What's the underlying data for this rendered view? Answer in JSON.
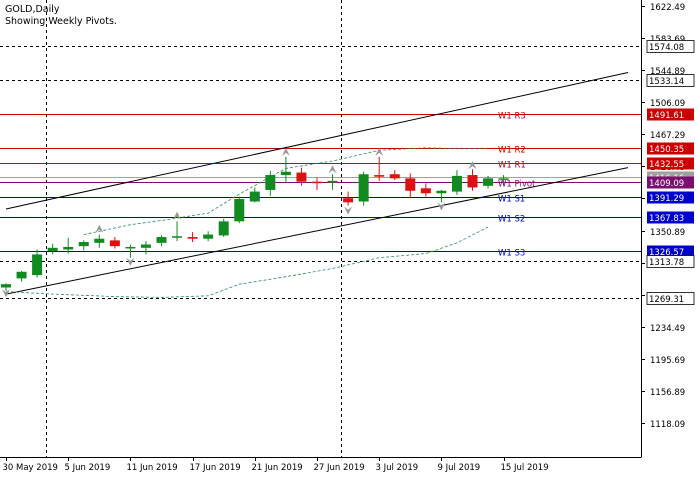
{
  "header": {
    "symbol_line": "GOLD,Daily",
    "indicator_line": "Showing Weekly Pivots."
  },
  "colors": {
    "bull": "#118a20",
    "bear": "#dd1111",
    "axis": "#000000",
    "resistance": "#cc0000",
    "support": "#0000cc",
    "pivot": "#7b0f6f",
    "current": "#a0a0a0",
    "channel": "#000000",
    "envelope": "#2e8b57",
    "fractal": "#999999"
  },
  "chart_data": {
    "type": "candlestick",
    "symbol": "GOLD",
    "timeframe": "Daily",
    "ylim": [
      1100,
      1622.49
    ],
    "y_ticks": [
      "1622.49",
      "1583.69",
      "1544.89",
      "1506.09",
      "1467.29",
      "1428.49",
      "1389.69",
      "1350.89",
      "1312.09",
      "1273.29",
      "1234.49",
      "1195.69",
      "1156.89",
      "1118.09"
    ],
    "x_tick_labels": [
      {
        "bar": 0,
        "label": "30 May 2019"
      },
      {
        "bar": 4,
        "label": "5 Jun 2019"
      },
      {
        "bar": 8,
        "label": "11 Jun 2019"
      },
      {
        "bar": 12,
        "label": "17 Jun 2019"
      },
      {
        "bar": 16,
        "label": "21 Jun 2019"
      },
      {
        "bar": 20,
        "label": "27 Jun 2019"
      },
      {
        "bar": 24,
        "label": "3 Jul 2019"
      },
      {
        "bar": 28,
        "label": "9 Jul 2019"
      },
      {
        "bar": 32,
        "label": "15 Jul 2019"
      }
    ],
    "candles": [
      {
        "o": 1282,
        "h": 1287,
        "l": 1278,
        "c": 1286
      },
      {
        "o": 1293,
        "h": 1302,
        "l": 1289,
        "c": 1301
      },
      {
        "o": 1297,
        "h": 1328,
        "l": 1294,
        "c": 1322
      },
      {
        "o": 1326,
        "h": 1335,
        "l": 1322,
        "c": 1330
      },
      {
        "o": 1328,
        "h": 1342,
        "l": 1323,
        "c": 1331
      },
      {
        "o": 1332,
        "h": 1339,
        "l": 1327,
        "c": 1337
      },
      {
        "o": 1336,
        "h": 1346,
        "l": 1330,
        "c": 1341
      },
      {
        "o": 1339,
        "h": 1343,
        "l": 1329,
        "c": 1332
      },
      {
        "o": 1330,
        "h": 1334,
        "l": 1318,
        "c": 1331
      },
      {
        "o": 1330,
        "h": 1338,
        "l": 1322,
        "c": 1334
      },
      {
        "o": 1336,
        "h": 1345,
        "l": 1332,
        "c": 1343
      },
      {
        "o": 1344,
        "h": 1362,
        "l": 1338,
        "c": 1344
      },
      {
        "o": 1343,
        "h": 1349,
        "l": 1337,
        "c": 1341
      },
      {
        "o": 1341,
        "h": 1350,
        "l": 1338,
        "c": 1346
      },
      {
        "o": 1345,
        "h": 1365,
        "l": 1343,
        "c": 1362
      },
      {
        "o": 1362,
        "h": 1392,
        "l": 1360,
        "c": 1389
      },
      {
        "o": 1386,
        "h": 1403,
        "l": 1385,
        "c": 1398
      },
      {
        "o": 1400,
        "h": 1423,
        "l": 1393,
        "c": 1418
      },
      {
        "o": 1418,
        "h": 1440,
        "l": 1410,
        "c": 1422
      },
      {
        "o": 1421,
        "h": 1427,
        "l": 1405,
        "c": 1410
      },
      {
        "o": 1410,
        "h": 1415,
        "l": 1400,
        "c": 1409
      },
      {
        "o": 1409,
        "h": 1419,
        "l": 1400,
        "c": 1411
      },
      {
        "o": 1390,
        "h": 1398,
        "l": 1381,
        "c": 1385
      },
      {
        "o": 1386,
        "h": 1422,
        "l": 1381,
        "c": 1419
      },
      {
        "o": 1418,
        "h": 1440,
        "l": 1411,
        "c": 1416
      },
      {
        "o": 1419,
        "h": 1424,
        "l": 1412,
        "c": 1414
      },
      {
        "o": 1414,
        "h": 1420,
        "l": 1390,
        "c": 1399
      },
      {
        "o": 1402,
        "h": 1408,
        "l": 1392,
        "c": 1396
      },
      {
        "o": 1396,
        "h": 1400,
        "l": 1385,
        "c": 1399
      },
      {
        "o": 1398,
        "h": 1424,
        "l": 1394,
        "c": 1417
      },
      {
        "o": 1418,
        "h": 1425,
        "l": 1399,
        "c": 1403
      },
      {
        "o": 1405,
        "h": 1417,
        "l": 1402,
        "c": 1414
      },
      {
        "o": 1413,
        "h": 1418,
        "l": 1406,
        "c": 1414
      }
    ],
    "horizontal_levels": [
      {
        "value": 1574.08,
        "label": "1574.08",
        "style": "dash",
        "kind": "plain"
      },
      {
        "value": 1533.14,
        "label": "1533.14",
        "style": "dash",
        "kind": "plain"
      },
      {
        "value": 1491.61,
        "label": "1491.61",
        "style": "solid",
        "kind": "resistance",
        "name": "W1 R3"
      },
      {
        "value": 1450.35,
        "label": "1450.35",
        "style": "solid",
        "kind": "resistance",
        "name": "W1 R2"
      },
      {
        "value": 1432.55,
        "label": "1432.55",
        "style": "solid",
        "kind": "resistance",
        "name": "W1 R1"
      },
      {
        "value": 1416.16,
        "label": "1416.16",
        "style": "solid",
        "kind": "current",
        "name": ""
      },
      {
        "value": 1409.09,
        "label": "1409.09",
        "style": "solid",
        "kind": "pivot",
        "name": "W1 Pivot"
      },
      {
        "value": 1391.29,
        "label": "1391.29",
        "style": "solid",
        "kind": "support",
        "name": "W1 S1"
      },
      {
        "value": 1367.83,
        "label": "1367.83",
        "style": "solid",
        "kind": "support",
        "name": "W1 S2"
      },
      {
        "value": 1326.57,
        "label": "1326.57",
        "style": "solid",
        "kind": "support",
        "name": "W1 S3"
      },
      {
        "value": 1313.78,
        "label": "1313.78",
        "style": "dash",
        "kind": "plain"
      },
      {
        "value": 1269.31,
        "label": "1269.31",
        "style": "dash",
        "kind": "plain"
      }
    ],
    "vertical_dashed_bars": [
      1,
      20
    ],
    "channel": [
      {
        "bar1": 0,
        "v1": 1377,
        "bar2": 40,
        "v2": 1542
      },
      {
        "bar1": 0,
        "v1": 1274,
        "bar2": 40,
        "v2": 1427
      }
    ],
    "envelope": [
      {
        "bar": 0,
        "v": 1277
      },
      {
        "bar": 3,
        "v": 1274
      },
      {
        "bar": 7,
        "v": 1271
      },
      {
        "bar": 10,
        "v": 1270
      },
      {
        "bar": 13,
        "v": 1272
      },
      {
        "bar": 15,
        "v": 1286
      },
      {
        "bar": 18,
        "v": 1295
      },
      {
        "bar": 21,
        "v": 1305
      },
      {
        "bar": 24,
        "v": 1318
      },
      {
        "bar": 27,
        "v": 1323
      },
      {
        "bar": 29,
        "v": 1336
      },
      {
        "bar": 31,
        "v": 1355
      }
    ],
    "upper_envelope": [
      {
        "bar": 5,
        "v": 1346
      },
      {
        "bar": 8,
        "v": 1358
      },
      {
        "bar": 10,
        "v": 1363
      },
      {
        "bar": 13,
        "v": 1372
      },
      {
        "bar": 15,
        "v": 1395
      },
      {
        "bar": 18,
        "v": 1426
      },
      {
        "bar": 21,
        "v": 1435
      },
      {
        "bar": 24,
        "v": 1448
      },
      {
        "bar": 27,
        "v": 1451
      },
      {
        "bar": 29,
        "v": 1450
      },
      {
        "bar": 31,
        "v": 1450
      }
    ],
    "fractals": [
      {
        "bar": 0,
        "v": 1275,
        "dir": "down"
      },
      {
        "bar": 6,
        "v": 1353,
        "dir": "up"
      },
      {
        "bar": 8,
        "v": 1313,
        "dir": "down"
      },
      {
        "bar": 11,
        "v": 1369,
        "dir": "up"
      },
      {
        "bar": 18,
        "v": 1446,
        "dir": "up"
      },
      {
        "bar": 21,
        "v": 1425,
        "dir": "up"
      },
      {
        "bar": 22,
        "v": 1375,
        "dir": "down"
      },
      {
        "bar": 24,
        "v": 1446,
        "dir": "up"
      },
      {
        "bar": 28,
        "v": 1380,
        "dir": "down"
      },
      {
        "bar": 30,
        "v": 1430,
        "dir": "up"
      }
    ]
  }
}
